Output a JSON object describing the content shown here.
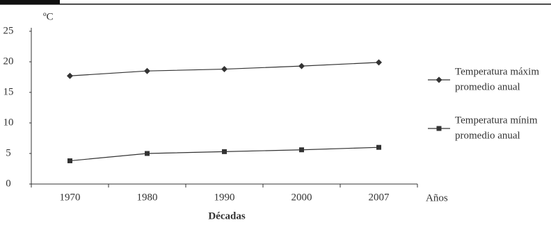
{
  "chart_data": {
    "type": "line",
    "y_unit": "ºC",
    "xlabel": "Décadas",
    "x_end_label": "Años",
    "categories": [
      "1970",
      "1980",
      "1990",
      "2000",
      "2007"
    ],
    "series": [
      {
        "name": [
          "Temperatura máxim",
          "promedio anual"
        ],
        "color": "#333333",
        "marker": "diamond",
        "values": [
          17.7,
          18.5,
          18.8,
          19.3,
          19.9
        ]
      },
      {
        "name": [
          "Temperatura mínim",
          "promedio anual"
        ],
        "color": "#333333",
        "marker": "square",
        "values": [
          3.8,
          5.0,
          5.3,
          5.6,
          6.0
        ]
      }
    ],
    "ylim": [
      0,
      25
    ],
    "yticks": [
      0,
      5,
      10,
      15,
      20,
      25
    ],
    "legend": "right"
  }
}
